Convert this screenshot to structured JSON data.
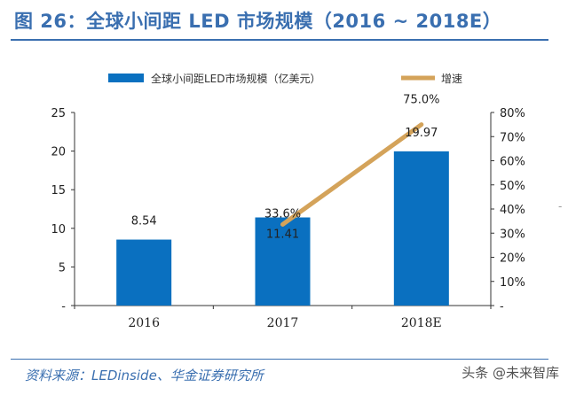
{
  "header": {
    "title": "图 26：全球小间距 LED 市场规模（2016 ~ 2018E）"
  },
  "footer": {
    "source": "资料来源：LEDinside、华金证券研究所",
    "watermark": "头条 @未来智库"
  },
  "edge_mark": "-",
  "chart_data": {
    "type": "bar",
    "title": "",
    "xlabel": "",
    "ylabel": "",
    "categories": [
      "2016",
      "2017",
      "2018E"
    ],
    "series": [
      {
        "name": "全球小间距LED市场规模（亿美元）",
        "type": "bar",
        "axis": "left",
        "values": [
          8.54,
          11.41,
          19.97
        ],
        "labels": [
          "8.54",
          "11.41",
          "19.97"
        ],
        "color": "#0a70c0"
      },
      {
        "name": "增速",
        "type": "line",
        "axis": "right",
        "values": [
          null,
          33.6,
          75.0
        ],
        "labels": [
          "",
          "33.6%",
          "75.0%"
        ],
        "color": "#d4a35a"
      }
    ],
    "left_axis": {
      "ylim": [
        0,
        25
      ],
      "ticks": [
        "-",
        "5",
        "10",
        "15",
        "20",
        "25"
      ]
    },
    "right_axis": {
      "ylim": [
        0,
        80
      ],
      "ticks": [
        "-",
        "10%",
        "20%",
        "30%",
        "40%",
        "50%",
        "60%",
        "70%",
        "80%"
      ]
    },
    "grid": false,
    "legend_position": "top"
  }
}
